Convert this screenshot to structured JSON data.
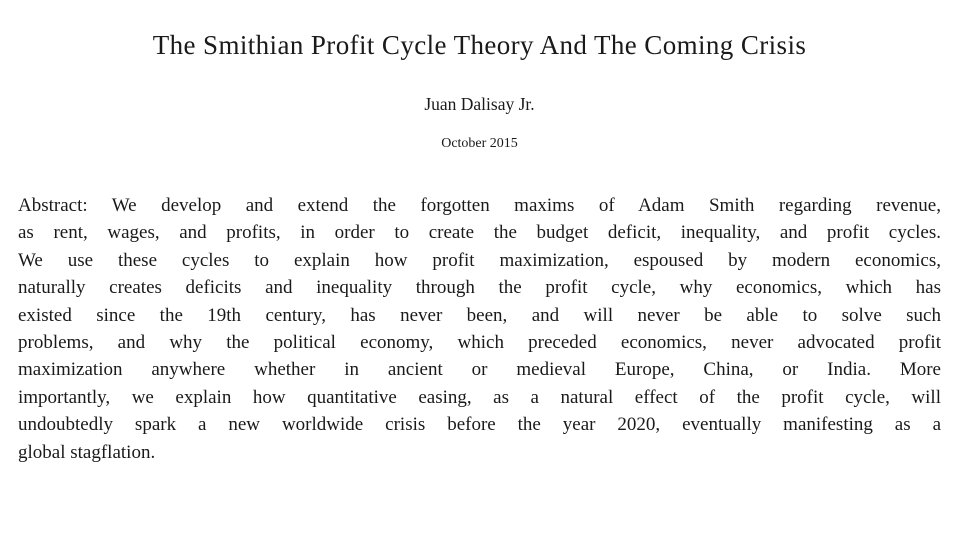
{
  "document": {
    "title": "The Smithian Profit Cycle Theory And The Coming Crisis",
    "author": "Juan Dalisay Jr.",
    "date": "October 2015",
    "abstract": {
      "lines": [
        "Abstract: We develop and extend the forgotten maxims of Adam Smith regarding revenue,",
        "as rent, wages, and profits, in order to create the budget deficit, inequality, and profit cycles.",
        "We use these cycles to explain how profit maximization, espoused by modern economics,",
        "naturally creates deficits and inequality through the profit cycle, why economics, which has",
        "existed since the 19th century, has never been, and will never be able to solve such",
        "problems, and why the political economy, which preceded economics, never advocated profit",
        "maximization anywhere whether in ancient or medieval Europe, China, or India. More",
        "importantly, we explain how quantitative easing, as a natural effect of the profit cycle, will",
        "undoubtedly spark a new worldwide crisis before the year 2020, eventually manifesting as a",
        "global stagflation."
      ]
    }
  },
  "colors": {
    "background": "#ffffff",
    "text": "#1a1a1a"
  }
}
